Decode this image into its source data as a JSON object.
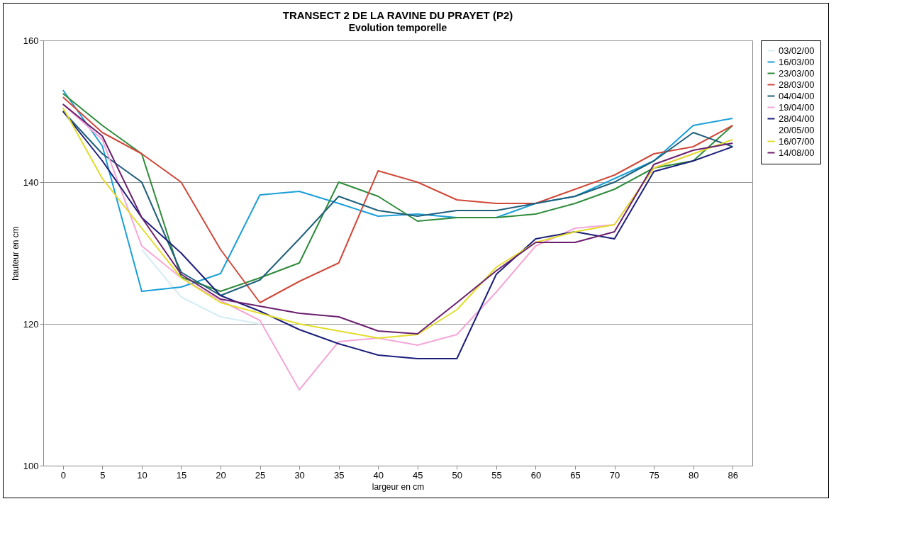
{
  "chart_data": {
    "type": "line",
    "title": "TRANSECT 2 DE LA RAVINE DU PRAYET  (P2)",
    "subtitle": "Evolution temporelle",
    "xlabel": "largeur en cm",
    "ylabel": "hauteur en cm",
    "categories": [
      "0",
      "5",
      "10",
      "15",
      "20",
      "25",
      "30",
      "35",
      "40",
      "45",
      "50",
      "55",
      "60",
      "65",
      "70",
      "75",
      "80",
      "86"
    ],
    "ylim": [
      100,
      160
    ],
    "yticks": [
      100,
      120,
      140,
      160
    ],
    "grid": "y",
    "legend": "right",
    "marker": "none",
    "line_style": "solid",
    "series": [
      {
        "name": "03/02/00",
        "color": "#d6ecf5",
        "values": [
          null,
          null,
          130.5,
          123.8,
          121,
          120,
          null,
          null,
          null,
          null,
          null,
          null,
          null,
          null,
          null,
          null,
          null,
          null
        ]
      },
      {
        "name": "16/03/00",
        "color": "#1a9fd8",
        "values": [
          153,
          145.1,
          124.6,
          125.2,
          127.1,
          138.2,
          138.7,
          137,
          135.2,
          135.5,
          135,
          135,
          137,
          138,
          140.5,
          143,
          148,
          149
        ]
      },
      {
        "name": "23/03/00",
        "color": "#2e8b3a",
        "values": [
          152.5,
          148,
          144,
          126.6,
          124.6,
          126.5,
          128.6,
          140,
          138,
          134.5,
          135,
          135,
          135.5,
          137,
          139,
          142,
          143,
          148
        ]
      },
      {
        "name": "28/03/00",
        "color": "#d0493a",
        "values": [
          152,
          147,
          144,
          140,
          130.5,
          123,
          126,
          128.6,
          141.6,
          140,
          137.5,
          137,
          137,
          139,
          141,
          144,
          145,
          148
        ]
      },
      {
        "name": "04/04/00",
        "color": "#1f5f7a",
        "values": [
          150,
          144,
          140,
          127.3,
          124,
          126.2,
          132,
          138,
          136,
          135.2,
          136,
          136,
          137,
          138,
          140,
          143,
          147,
          145
        ]
      },
      {
        "name": "19/04/00",
        "color": "#f4a6d8",
        "values": [
          151,
          146,
          131,
          126.5,
          123.3,
          120.5,
          110.7,
          117.5,
          118,
          117,
          118.5,
          124.5,
          131,
          133.5,
          134,
          142,
          144,
          null
        ]
      },
      {
        "name": "28/04/00",
        "color": "#1c1f7a",
        "values": [
          150,
          143,
          135,
          130,
          124,
          121.8,
          119.2,
          117.2,
          115.6,
          115.1,
          115.1,
          127,
          132,
          133,
          132,
          141.5,
          143,
          145
        ]
      },
      {
        "name": "20/05/00",
        "values": [
          null,
          null,
          null,
          null,
          null,
          null,
          null,
          null,
          null,
          null,
          null,
          null,
          null,
          null,
          null,
          null,
          null,
          null
        ]
      },
      {
        "name": "16/07/00",
        "color": "#e2dc2a",
        "values": [
          150.5,
          140.5,
          133.5,
          126.5,
          123,
          121.5,
          120,
          119,
          118,
          118.5,
          122,
          128,
          131.5,
          133,
          134,
          142,
          144,
          146
        ]
      },
      {
        "name": "14/08/00",
        "color": "#6a1f6e",
        "values": [
          151,
          146.5,
          135,
          127,
          123.5,
          122.5,
          121.5,
          121,
          119,
          118.6,
          123,
          127.5,
          131.5,
          131.5,
          133,
          142.5,
          144.5,
          145.5
        ]
      }
    ]
  }
}
